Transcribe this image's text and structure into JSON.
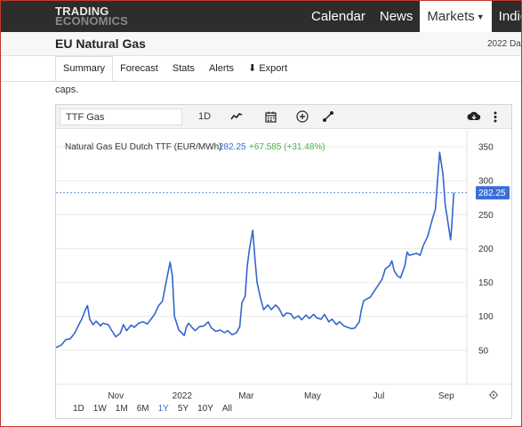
{
  "header": {
    "logo_line1": "TRADING",
    "logo_line2": "ECONOMICS",
    "nav": [
      {
        "label": "Calendar"
      },
      {
        "label": "News"
      },
      {
        "label": "Markets",
        "active": true
      },
      {
        "label": "Indicators"
      }
    ]
  },
  "subheader": {
    "title": "EU Natural Gas",
    "date": "2022 Da"
  },
  "tabs": [
    "Summary",
    "Forecast",
    "Stats",
    "Alerts",
    "Export"
  ],
  "caps_text": "caps.",
  "toolbar": {
    "symbol": "TTF Gas",
    "interval": "1D",
    "icons": [
      "line-chart-icon",
      "calendar-icon",
      "add-icon",
      "draw-icon",
      "download-icon",
      "more-icon"
    ]
  },
  "chart_data": {
    "type": "line",
    "series_title": "Natural Gas EU Dutch TTF (EUR/MWh)",
    "last_value_text": "282.25",
    "change_text": "+67.585 (+31.48%)",
    "last_value": 282.25,
    "ylim": [
      0,
      375
    ],
    "yticks": [
      50,
      100,
      150,
      200,
      250,
      300,
      350
    ],
    "xticks": [
      {
        "label": "Nov",
        "date": "2021-11-01"
      },
      {
        "label": "2022",
        "date": "2022-01-01"
      },
      {
        "label": "Mar",
        "date": "2022-03-01"
      },
      {
        "label": "May",
        "date": "2022-05-01"
      },
      {
        "label": "Jul",
        "date": "2022-07-01"
      },
      {
        "label": "Sep",
        "date": "2022-09-01"
      }
    ],
    "xlim": [
      "2021-09-07",
      "2022-09-20"
    ],
    "points": [
      [
        "2021-09-07",
        54
      ],
      [
        "2021-09-12",
        58
      ],
      [
        "2021-09-16",
        66
      ],
      [
        "2021-09-20",
        67
      ],
      [
        "2021-09-24",
        75
      ],
      [
        "2021-09-28",
        88
      ],
      [
        "2021-10-01",
        97
      ],
      [
        "2021-10-04",
        110
      ],
      [
        "2021-10-06",
        116
      ],
      [
        "2021-10-08",
        96
      ],
      [
        "2021-10-11",
        88
      ],
      [
        "2021-10-14",
        93
      ],
      [
        "2021-10-18",
        86
      ],
      [
        "2021-10-20",
        90
      ],
      [
        "2021-10-25",
        88
      ],
      [
        "2021-10-28",
        80
      ],
      [
        "2021-11-01",
        70
      ],
      [
        "2021-11-05",
        75
      ],
      [
        "2021-11-08",
        88
      ],
      [
        "2021-11-11",
        79
      ],
      [
        "2021-11-15",
        87
      ],
      [
        "2021-11-18",
        84
      ],
      [
        "2021-11-22",
        90
      ],
      [
        "2021-11-26",
        92
      ],
      [
        "2021-11-30",
        89
      ],
      [
        "2021-12-03",
        95
      ],
      [
        "2021-12-07",
        104
      ],
      [
        "2021-12-10",
        115
      ],
      [
        "2021-12-14",
        123
      ],
      [
        "2021-12-17",
        148
      ],
      [
        "2021-12-21",
        180
      ],
      [
        "2021-12-23",
        160
      ],
      [
        "2021-12-25",
        100
      ],
      [
        "2021-12-29",
        80
      ],
      [
        "2022-01-03",
        72
      ],
      [
        "2022-01-05",
        85
      ],
      [
        "2022-01-07",
        90
      ],
      [
        "2022-01-10",
        84
      ],
      [
        "2022-01-13",
        79
      ],
      [
        "2022-01-17",
        85
      ],
      [
        "2022-01-21",
        86
      ],
      [
        "2022-01-25",
        92
      ],
      [
        "2022-01-28",
        83
      ],
      [
        "2022-02-01",
        78
      ],
      [
        "2022-02-05",
        80
      ],
      [
        "2022-02-09",
        76
      ],
      [
        "2022-02-12",
        79
      ],
      [
        "2022-02-16",
        73
      ],
      [
        "2022-02-20",
        76
      ],
      [
        "2022-02-23",
        85
      ],
      [
        "2022-02-25",
        120
      ],
      [
        "2022-02-28",
        130
      ],
      [
        "2022-03-02",
        175
      ],
      [
        "2022-03-04",
        200
      ],
      [
        "2022-03-07",
        227
      ],
      [
        "2022-03-09",
        185
      ],
      [
        "2022-03-11",
        150
      ],
      [
        "2022-03-14",
        128
      ],
      [
        "2022-03-17",
        110
      ],
      [
        "2022-03-21",
        117
      ],
      [
        "2022-03-24",
        110
      ],
      [
        "2022-03-28",
        117
      ],
      [
        "2022-03-31",
        112
      ],
      [
        "2022-04-04",
        100
      ],
      [
        "2022-04-07",
        105
      ],
      [
        "2022-04-11",
        104
      ],
      [
        "2022-04-14",
        97
      ],
      [
        "2022-04-18",
        101
      ],
      [
        "2022-04-21",
        95
      ],
      [
        "2022-04-25",
        102
      ],
      [
        "2022-04-28",
        97
      ],
      [
        "2022-05-02",
        103
      ],
      [
        "2022-05-05",
        98
      ],
      [
        "2022-05-09",
        96
      ],
      [
        "2022-05-12",
        103
      ],
      [
        "2022-05-16",
        92
      ],
      [
        "2022-05-19",
        96
      ],
      [
        "2022-05-23",
        88
      ],
      [
        "2022-05-26",
        92
      ],
      [
        "2022-05-30",
        86
      ],
      [
        "2022-06-02",
        84
      ],
      [
        "2022-06-06",
        82
      ],
      [
        "2022-06-09",
        83
      ],
      [
        "2022-06-13",
        92
      ],
      [
        "2022-06-15",
        110
      ],
      [
        "2022-06-17",
        123
      ],
      [
        "2022-06-20",
        126
      ],
      [
        "2022-06-23",
        128
      ],
      [
        "2022-06-27",
        138
      ],
      [
        "2022-06-30",
        145
      ],
      [
        "2022-07-04",
        155
      ],
      [
        "2022-07-07",
        170
      ],
      [
        "2022-07-11",
        175
      ],
      [
        "2022-07-13",
        182
      ],
      [
        "2022-07-15",
        168
      ],
      [
        "2022-07-18",
        160
      ],
      [
        "2022-07-21",
        157
      ],
      [
        "2022-07-25",
        175
      ],
      [
        "2022-07-27",
        195
      ],
      [
        "2022-07-29",
        190
      ],
      [
        "2022-08-02",
        192
      ],
      [
        "2022-08-05",
        193
      ],
      [
        "2022-08-08",
        190
      ],
      [
        "2022-08-11",
        205
      ],
      [
        "2022-08-15",
        218
      ],
      [
        "2022-08-17",
        230
      ],
      [
        "2022-08-19",
        242
      ],
      [
        "2022-08-22",
        258
      ],
      [
        "2022-08-24",
        300
      ],
      [
        "2022-08-26",
        342
      ],
      [
        "2022-08-29",
        310
      ],
      [
        "2022-08-31",
        265
      ],
      [
        "2022-09-02",
        245
      ],
      [
        "2022-09-05",
        213
      ],
      [
        "2022-09-06",
        232
      ],
      [
        "2022-09-08",
        282.25
      ]
    ]
  },
  "ranges": [
    "1D",
    "1W",
    "1M",
    "6M",
    "1Y",
    "5Y",
    "10Y",
    "All"
  ],
  "active_range": "1Y",
  "colors": {
    "line": "#3366cc",
    "change": "#4caf50",
    "price_tag": "#3b6fd6",
    "active_range": "#3b6fd6"
  }
}
